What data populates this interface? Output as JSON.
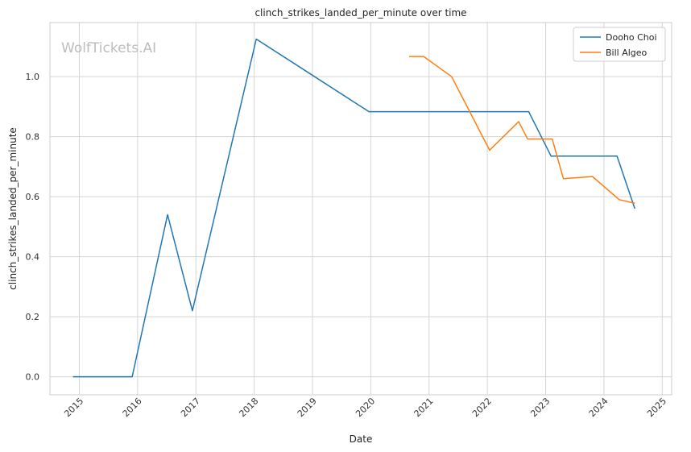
{
  "chart_data": {
    "type": "line",
    "title": "clinch_strikes_landed_per_minute over time",
    "xlabel": "Date",
    "ylabel": "clinch_strikes_landed_per_minute",
    "watermark": "WolfTickets.AI",
    "x_ticks": [
      "2015",
      "2016",
      "2017",
      "2018",
      "2019",
      "2020",
      "2021",
      "2022",
      "2023",
      "2024",
      "2025"
    ],
    "y_ticks": [
      "0.0",
      "0.2",
      "0.4",
      "0.6",
      "0.8",
      "1.0"
    ],
    "xlim": [
      "2014-07-01",
      "2025-03-01"
    ],
    "ylim": [
      -0.06,
      1.18
    ],
    "grid": true,
    "legend_position": "top-right",
    "series": [
      {
        "name": "Dooho Choi",
        "color": "#1f77b4",
        "points": [
          {
            "x": "2014-11-22",
            "y": 0.0
          },
          {
            "x": "2015-11-28",
            "y": 0.0
          },
          {
            "x": "2016-07-07",
            "y": 0.54
          },
          {
            "x": "2016-12-10",
            "y": 0.22
          },
          {
            "x": "2018-01-14",
            "y": 1.125
          },
          {
            "x": "2019-12-21",
            "y": 0.883
          },
          {
            "x": "2022-09-17",
            "y": 0.883
          },
          {
            "x": "2023-02-04",
            "y": 0.735
          },
          {
            "x": "2024-03-23",
            "y": 0.735
          },
          {
            "x": "2024-07-13",
            "y": 0.56
          }
        ]
      },
      {
        "name": "Bill Algeo",
        "color": "#ff7f0e",
        "points": [
          {
            "x": "2020-08-29",
            "y": 1.067
          },
          {
            "x": "2020-11-28",
            "y": 1.067
          },
          {
            "x": "2021-05-22",
            "y": 1.0
          },
          {
            "x": "2022-01-15",
            "y": 0.755
          },
          {
            "x": "2022-07-16",
            "y": 0.85
          },
          {
            "x": "2022-09-10",
            "y": 0.792
          },
          {
            "x": "2023-02-11",
            "y": 0.792
          },
          {
            "x": "2023-04-22",
            "y": 0.66
          },
          {
            "x": "2023-10-21",
            "y": 0.667
          },
          {
            "x": "2024-04-06",
            "y": 0.59
          },
          {
            "x": "2024-07-13",
            "y": 0.578
          }
        ]
      }
    ]
  }
}
